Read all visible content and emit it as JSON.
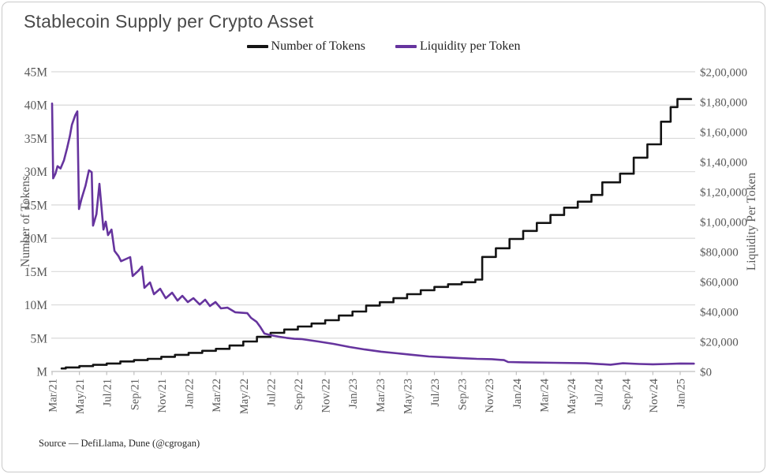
{
  "card": {
    "title": "Stablecoin Supply per Crypto Asset",
    "source": "Source — DefiLlama, Dune (@cgrogan)"
  },
  "legend": {
    "items": [
      {
        "label": "Number of Tokens"
      },
      {
        "label": "Liquidity per Token"
      }
    ]
  },
  "chart_data": {
    "type": "line",
    "title": "Stablecoin Supply per Crypto Asset",
    "grid": "horizontal",
    "x_domain": [
      0,
      47.1
    ],
    "x_tick_months": [
      0,
      2,
      4,
      6,
      8,
      10,
      12,
      14,
      16,
      18,
      20,
      22,
      24,
      26,
      28,
      30,
      32,
      34,
      36,
      38,
      40,
      42,
      44,
      46
    ],
    "x_tick_labels": [
      "Mar/21",
      "May/21",
      "Jul/21",
      "Sep/21",
      "Nov/21",
      "Jan/22",
      "Mar/22",
      "May/22",
      "Jul/22",
      "Sep/22",
      "Nov/22",
      "Jan/23",
      "Mar/23",
      "May/23",
      "Jul/23",
      "Sep/23",
      "Nov/23",
      "Jan/24",
      "Mar/24",
      "May/24",
      "Jul/24",
      "Sep/24",
      "Nov/24",
      "Jan/25"
    ],
    "left_axis": {
      "title": "Number of Tokens",
      "range": [
        0,
        45
      ],
      "unit": "millions of tokens",
      "tick_values": [
        45,
        40,
        35,
        30,
        25,
        20,
        15,
        10,
        5,
        0
      ],
      "tick_labels": [
        "45M",
        "40M",
        "35M",
        "30M",
        "25M",
        "20M",
        "15M",
        "10M",
        "5M",
        "M"
      ]
    },
    "right_axis": {
      "title": "Liquidity Per Token",
      "range": [
        0,
        200000
      ],
      "unit": "USD",
      "tick_values": [
        200000,
        180000,
        160000,
        140000,
        120000,
        100000,
        80000,
        60000,
        40000,
        20000,
        0
      ],
      "tick_labels": [
        "$2,00,000",
        "$1,80,000",
        "$1,60,000",
        "$1,40,000",
        "$1,20,000",
        "$1,00,000",
        "$80,000",
        "$60,000",
        "$40,000",
        "$20,000",
        "$0"
      ]
    },
    "series": [
      {
        "name": "Number of Tokens",
        "axis": "left",
        "style": "step",
        "color": "#141414",
        "unit": "M",
        "points": [
          [
            0.7,
            0.45
          ],
          [
            1,
            0.6
          ],
          [
            2,
            0.8
          ],
          [
            3,
            1.0
          ],
          [
            4,
            1.2
          ],
          [
            5,
            1.5
          ],
          [
            6,
            1.7
          ],
          [
            7,
            1.9
          ],
          [
            8,
            2.2
          ],
          [
            9,
            2.5
          ],
          [
            10,
            2.8
          ],
          [
            11,
            3.1
          ],
          [
            12,
            3.4
          ],
          [
            13,
            3.9
          ],
          [
            14,
            4.5
          ],
          [
            15,
            5.2
          ],
          [
            16,
            5.8
          ],
          [
            17,
            6.3
          ],
          [
            18,
            6.75
          ],
          [
            19,
            7.2
          ],
          [
            20,
            7.7
          ],
          [
            21,
            8.4
          ],
          [
            22,
            9.0
          ],
          [
            23,
            9.9
          ],
          [
            24,
            10.4
          ],
          [
            25,
            11.0
          ],
          [
            26,
            11.6
          ],
          [
            27,
            12.2
          ],
          [
            28,
            12.7
          ],
          [
            29,
            13.1
          ],
          [
            30,
            13.4
          ],
          [
            31,
            13.8
          ],
          [
            31.5,
            17.2
          ],
          [
            32.5,
            18.5
          ],
          [
            33.5,
            19.9
          ],
          [
            34.5,
            21.1
          ],
          [
            35.5,
            22.3
          ],
          [
            36.5,
            23.5
          ],
          [
            37.5,
            24.6
          ],
          [
            38.5,
            25.5
          ],
          [
            39.5,
            26.5
          ],
          [
            40.3,
            28.4
          ],
          [
            41.6,
            29.7
          ],
          [
            42.6,
            32.1
          ],
          [
            43.6,
            34.1
          ],
          [
            44.6,
            37.5
          ],
          [
            45.3,
            39.7
          ],
          [
            45.8,
            40.9
          ],
          [
            46.8,
            40.9
          ]
        ]
      },
      {
        "name": "Liquidity per Token",
        "axis": "right",
        "style": "linear",
        "color": "#66349E",
        "unit": "$",
        "points": [
          [
            0,
            178800
          ],
          [
            0.08,
            128900
          ],
          [
            0.25,
            132000
          ],
          [
            0.4,
            137000
          ],
          [
            0.62,
            135500
          ],
          [
            0.87,
            141000
          ],
          [
            1.1,
            149000
          ],
          [
            1.3,
            157000
          ],
          [
            1.45,
            164600
          ],
          [
            1.7,
            171000
          ],
          [
            1.85,
            173600
          ],
          [
            1.97,
            108400
          ],
          [
            2.15,
            115000
          ],
          [
            2.45,
            124000
          ],
          [
            2.7,
            134200
          ],
          [
            2.9,
            133000
          ],
          [
            3.0,
            97300
          ],
          [
            3.25,
            105000
          ],
          [
            3.47,
            125200
          ],
          [
            3.76,
            94700
          ],
          [
            3.93,
            100000
          ],
          [
            4.1,
            91000
          ],
          [
            4.35,
            94700
          ],
          [
            4.57,
            80500
          ],
          [
            4.86,
            77000
          ],
          [
            5.05,
            73600
          ],
          [
            5.4,
            75000
          ],
          [
            5.72,
            76300
          ],
          [
            5.9,
            63700
          ],
          [
            6.3,
            67000
          ],
          [
            6.59,
            70000
          ],
          [
            6.76,
            55800
          ],
          [
            7.17,
            59400
          ],
          [
            7.46,
            51600
          ],
          [
            7.92,
            55200
          ],
          [
            8.32,
            48900
          ],
          [
            8.79,
            52600
          ],
          [
            9.19,
            47300
          ],
          [
            9.54,
            50500
          ],
          [
            9.94,
            46300
          ],
          [
            10.35,
            48900
          ],
          [
            10.81,
            44700
          ],
          [
            11.21,
            47900
          ],
          [
            11.56,
            43700
          ],
          [
            11.97,
            46300
          ],
          [
            12.37,
            42100
          ],
          [
            12.85,
            42600
          ],
          [
            13.41,
            39500
          ],
          [
            14.3,
            38900
          ],
          [
            14.57,
            35800
          ],
          [
            14.97,
            33200
          ],
          [
            15.26,
            29500
          ],
          [
            15.55,
            25300
          ],
          [
            16.01,
            24200
          ],
          [
            16.59,
            23200
          ],
          [
            17.17,
            22400
          ],
          [
            17.75,
            21800
          ],
          [
            18.3,
            21600
          ],
          [
            19.5,
            20000
          ],
          [
            20.6,
            18400
          ],
          [
            21.8,
            16300
          ],
          [
            22.9,
            14700
          ],
          [
            24.1,
            13200
          ],
          [
            25.3,
            12100
          ],
          [
            26.4,
            11100
          ],
          [
            27.6,
            10000
          ],
          [
            28.7,
            9500
          ],
          [
            29.9,
            8900
          ],
          [
            31.1,
            8400
          ],
          [
            32.2,
            8200
          ],
          [
            33.1,
            7600
          ],
          [
            33.4,
            6300
          ],
          [
            34.5,
            6100
          ],
          [
            36.8,
            5800
          ],
          [
            39.1,
            5500
          ],
          [
            40.9,
            4500
          ],
          [
            41.8,
            5500
          ],
          [
            43.0,
            5000
          ],
          [
            44.0,
            4800
          ],
          [
            45.0,
            5000
          ],
          [
            46.0,
            5300
          ],
          [
            47.0,
            5200
          ]
        ]
      }
    ],
    "colors": {
      "grid": "#d9d9d9",
      "baseline": "#bfbfbf",
      "tick_text": "#595959"
    }
  }
}
